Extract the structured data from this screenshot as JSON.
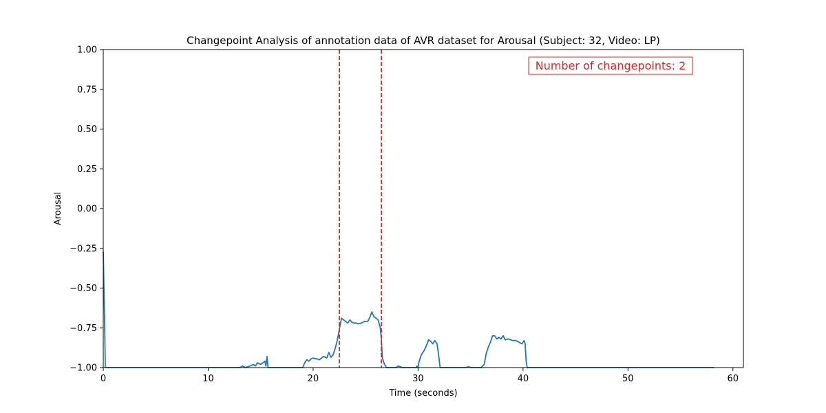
{
  "chart_data": {
    "type": "line",
    "title": "Changepoint Analysis of annotation data of AVR dataset for Arousal (Subject: 32, Video: LP)",
    "xlabel": "Time (seconds)",
    "ylabel": "Arousal",
    "xlim": [
      0,
      61
    ],
    "ylim": [
      -1.0,
      1.0
    ],
    "xticks": [
      0,
      10,
      20,
      30,
      40,
      50,
      60
    ],
    "yticks": [
      -1.0,
      -0.75,
      -0.5,
      -0.25,
      0.0,
      0.25,
      0.5,
      0.75,
      1.0
    ],
    "xtick_labels": [
      "0",
      "10",
      "20",
      "30",
      "40",
      "50",
      "60"
    ],
    "ytick_labels": [
      "−1.00",
      "−0.75",
      "−0.50",
      "−0.25",
      "0.00",
      "0.25",
      "0.50",
      "0.75",
      "1.00"
    ],
    "grid": false,
    "line_color": "#1f77b4",
    "changepoint_color": "#d62728",
    "changepoints": [
      22.5,
      26.5
    ],
    "annotation": "Number of changepoints: 2",
    "series": [
      {
        "x": [
          0,
          0.1,
          0.2,
          2,
          5,
          10,
          13.0,
          13.3,
          13.5,
          14.0,
          14.3,
          14.5,
          14.7,
          15.0,
          15.2,
          15.4,
          15.5,
          15.6,
          15.7,
          15.8,
          16,
          19.0,
          19.2,
          19.4,
          19.6,
          19.8,
          20.0,
          20.3,
          20.6,
          21.0,
          21.3,
          21.5,
          21.7,
          21.9,
          22.1,
          22.3,
          22.5,
          22.7,
          22.9,
          23.1,
          23.3,
          23.5,
          23.7,
          23.9,
          24.1,
          24.3,
          24.6,
          24.9,
          25.2,
          25.4,
          25.6,
          25.8,
          26.0,
          26.2,
          26.4,
          26.5,
          26.6,
          26.8,
          27.0,
          27.5,
          27.9,
          28.1,
          28.5,
          29.0,
          29.8,
          29.9,
          30.0,
          30.1,
          30.3,
          30.6,
          30.8,
          31.0,
          31.2,
          31.4,
          31.6,
          31.8,
          31.9,
          32.1,
          32.3,
          32.5,
          33,
          34.5,
          34.8,
          35,
          36.0,
          36.3,
          36.5,
          36.7,
          36.9,
          37.1,
          37.3,
          37.5,
          37.7,
          37.9,
          38.1,
          38.3,
          38.6,
          39.0,
          39.3,
          39.6,
          39.9,
          40.1,
          40.2,
          40.3,
          40.4,
          41,
          45,
          50,
          55,
          58.2
        ],
        "y": [
          -0.27,
          -0.6,
          -1.0,
          -1.0,
          -1.0,
          -1.0,
          -1.0,
          -0.99,
          -1.0,
          -0.99,
          -0.98,
          -0.99,
          -0.97,
          -0.98,
          -0.97,
          -0.96,
          -0.99,
          -0.93,
          -1.0,
          -1.0,
          -1.0,
          -1.0,
          -0.97,
          -0.95,
          -0.96,
          -0.945,
          -0.94,
          -0.945,
          -0.95,
          -0.93,
          -0.94,
          -0.905,
          -0.935,
          -0.92,
          -0.88,
          -0.83,
          -0.76,
          -0.69,
          -0.7,
          -0.71,
          -0.72,
          -0.7,
          -0.715,
          -0.72,
          -0.72,
          -0.725,
          -0.72,
          -0.71,
          -0.71,
          -0.685,
          -0.65,
          -0.68,
          -0.69,
          -0.7,
          -0.75,
          -0.82,
          -0.94,
          -0.98,
          -1.0,
          -1.0,
          -1.0,
          -0.99,
          -1.0,
          -1.0,
          -1.0,
          -0.99,
          -1.0,
          -0.96,
          -0.92,
          -0.89,
          -0.86,
          -0.825,
          -0.835,
          -0.85,
          -0.83,
          -0.85,
          -0.89,
          -1.0,
          -1.0,
          -1.0,
          -1.0,
          -1.0,
          -0.995,
          -1.0,
          -1.0,
          -0.98,
          -0.91,
          -0.87,
          -0.84,
          -0.8,
          -0.8,
          -0.82,
          -0.81,
          -0.82,
          -0.8,
          -0.825,
          -0.82,
          -0.83,
          -0.83,
          -0.84,
          -0.85,
          -0.83,
          -0.85,
          -0.96,
          -1.0,
          -1.0,
          -1.0,
          -1.0,
          -1.0,
          -1.0
        ]
      }
    ]
  }
}
